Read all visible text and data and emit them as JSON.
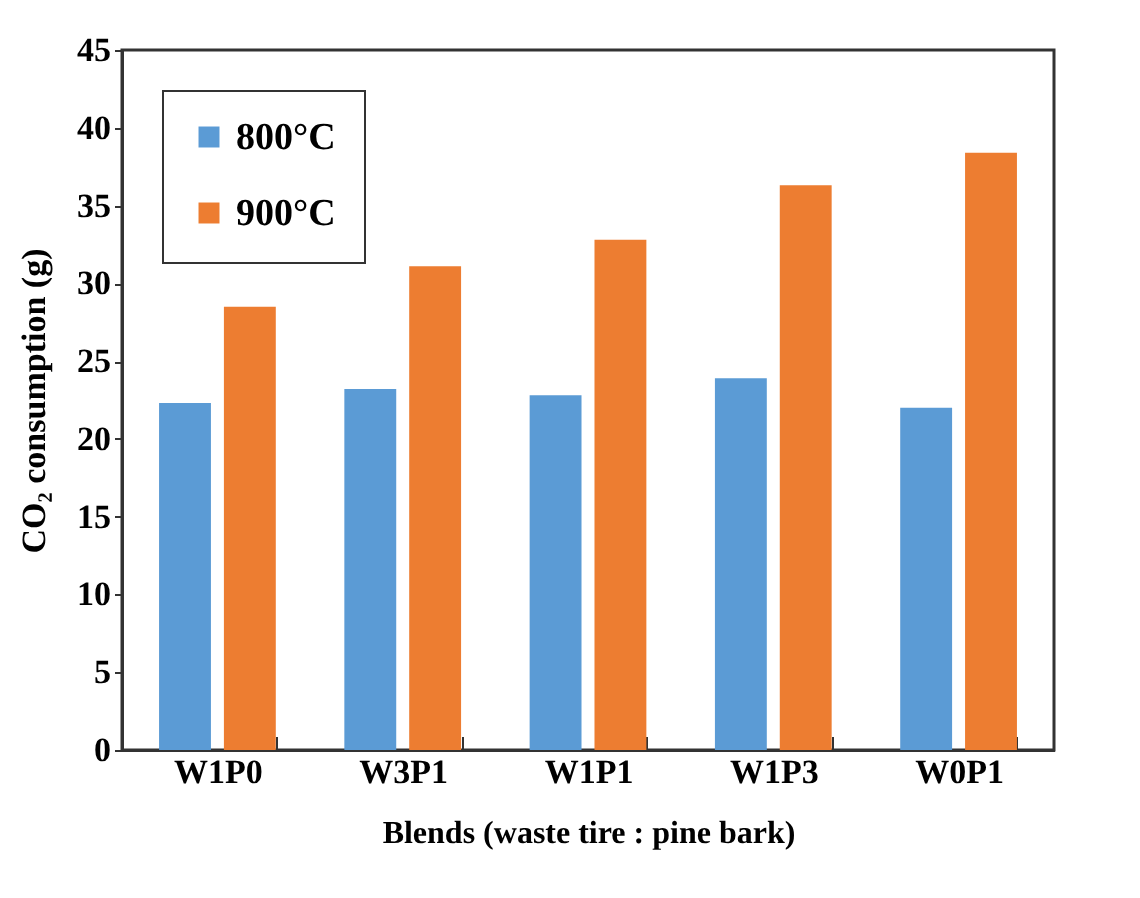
{
  "chart_data": {
    "type": "bar",
    "xlabel": "Blends (waste tire : pine bark)",
    "ylabel": "CO₂ consumption (g)",
    "categories": [
      "W1P0",
      "W3P1",
      "W1P1",
      "W1P3",
      "W0P1"
    ],
    "series": [
      {
        "name": "800°C",
        "color": "#5b9bd5",
        "values": [
          22.3,
          23.2,
          22.8,
          23.9,
          22.0
        ]
      },
      {
        "name": "900°C",
        "color": "#ed7d31",
        "values": [
          28.5,
          31.1,
          32.8,
          36.3,
          38.4
        ]
      }
    ],
    "ylim": [
      0,
      45
    ],
    "yticks": [
      0,
      5,
      10,
      15,
      20,
      25,
      30,
      35,
      40,
      45
    ],
    "grid": false,
    "legend": "top left"
  }
}
